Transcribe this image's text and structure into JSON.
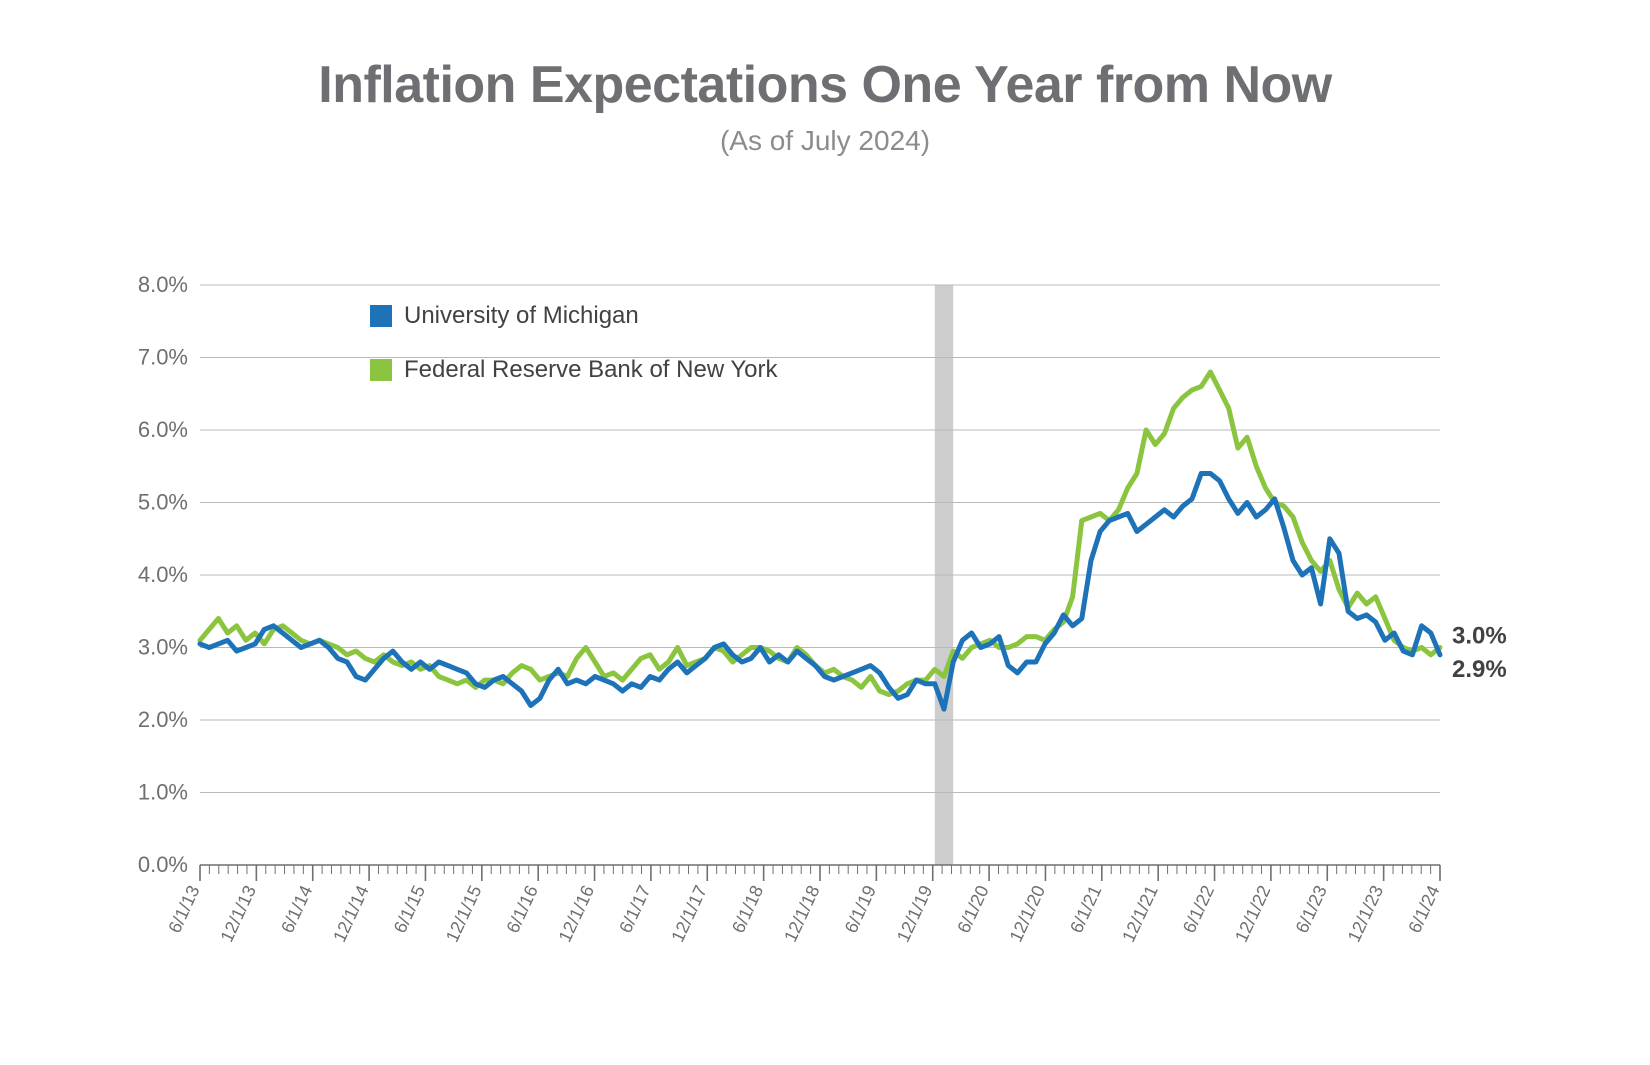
{
  "title": "Inflation Expectations One Year from Now",
  "subtitle": "(As of July 2024)",
  "chart": {
    "type": "line",
    "background_color": "#ffffff",
    "grid_color": "#b9b9b9",
    "axis_color": "#6e6f72",
    "tick_color": "#6e6f72",
    "ytick_label_fontsize": 22,
    "xtick_label_fontsize": 18,
    "ylim": [
      0,
      8
    ],
    "ytick_step": 1,
    "ytick_format_suffix": ".0%",
    "x_labels": [
      "6/1/13",
      "12/1/13",
      "6/1/14",
      "12/1/14",
      "6/1/15",
      "12/1/15",
      "6/1/16",
      "12/1/16",
      "6/1/17",
      "12/1/17",
      "6/1/18",
      "12/1/18",
      "6/1/19",
      "12/1/19",
      "6/1/20",
      "12/1/20",
      "6/1/21",
      "12/1/21",
      "6/1/22",
      "12/1/22",
      "6/1/23",
      "12/1/23",
      "6/1/24"
    ],
    "minor_ticks_per_major": 6,
    "recession_band": {
      "x_start_index": 80,
      "x_end_index": 82,
      "color": "#bcbcbc",
      "opacity": 0.75
    },
    "line_width": 5,
    "legend": {
      "x": 250,
      "y_first": 58,
      "row_gap": 54,
      "swatch_size": 22,
      "fontsize": 24,
      "text_color": "#404244"
    },
    "series": [
      {
        "name": "Federal Reserve Bank of New York",
        "color": "#8bc53f",
        "end_label": "3.0%",
        "end_label_color": "#404244",
        "values": [
          3.1,
          3.25,
          3.4,
          3.2,
          3.3,
          3.1,
          3.2,
          3.05,
          3.25,
          3.3,
          3.2,
          3.1,
          3.05,
          3.1,
          3.05,
          3.0,
          2.9,
          2.95,
          2.85,
          2.8,
          2.9,
          2.8,
          2.75,
          2.8,
          2.7,
          2.75,
          2.6,
          2.55,
          2.5,
          2.55,
          2.45,
          2.55,
          2.55,
          2.5,
          2.65,
          2.75,
          2.7,
          2.55,
          2.6,
          2.65,
          2.6,
          2.85,
          3.0,
          2.8,
          2.6,
          2.65,
          2.55,
          2.7,
          2.85,
          2.9,
          2.7,
          2.8,
          3.0,
          2.75,
          2.8,
          2.85,
          3.0,
          2.95,
          2.8,
          2.9,
          3.0,
          3.0,
          2.95,
          2.85,
          2.8,
          3.0,
          2.9,
          2.75,
          2.65,
          2.7,
          2.6,
          2.55,
          2.45,
          2.6,
          2.4,
          2.35,
          2.4,
          2.5,
          2.55,
          2.55,
          2.7,
          2.6,
          2.95,
          2.85,
          3.0,
          3.05,
          3.1,
          3.0,
          3.0,
          3.05,
          3.15,
          3.15,
          3.1,
          3.25,
          3.35,
          3.7,
          4.75,
          4.8,
          4.85,
          4.75,
          4.9,
          5.2,
          5.4,
          6.0,
          5.8,
          5.95,
          6.3,
          6.45,
          6.55,
          6.6,
          6.8,
          6.55,
          6.3,
          5.75,
          5.9,
          5.5,
          5.2,
          5.0,
          4.95,
          4.8,
          4.45,
          4.2,
          4.05,
          4.2,
          3.8,
          3.55,
          3.75,
          3.6,
          3.7,
          3.4,
          3.1,
          3.0,
          2.95,
          3.0,
          2.9,
          3.0
        ]
      },
      {
        "name": "University of Michigan",
        "color": "#1e73b8",
        "end_label": "2.9%",
        "end_label_color": "#404244",
        "values": [
          3.05,
          3.0,
          3.05,
          3.1,
          2.95,
          3.0,
          3.05,
          3.25,
          3.3,
          3.2,
          3.1,
          3.0,
          3.05,
          3.1,
          3.0,
          2.85,
          2.8,
          2.6,
          2.55,
          2.7,
          2.85,
          2.95,
          2.8,
          2.7,
          2.8,
          2.7,
          2.8,
          2.75,
          2.7,
          2.65,
          2.5,
          2.45,
          2.55,
          2.6,
          2.5,
          2.4,
          2.2,
          2.3,
          2.55,
          2.7,
          2.5,
          2.55,
          2.5,
          2.6,
          2.55,
          2.5,
          2.4,
          2.5,
          2.45,
          2.6,
          2.55,
          2.7,
          2.8,
          2.65,
          2.75,
          2.85,
          3.0,
          3.05,
          2.9,
          2.8,
          2.85,
          3.0,
          2.8,
          2.9,
          2.8,
          2.95,
          2.85,
          2.75,
          2.6,
          2.55,
          2.6,
          2.65,
          2.7,
          2.75,
          2.65,
          2.45,
          2.3,
          2.35,
          2.55,
          2.5,
          2.5,
          2.15,
          2.8,
          3.1,
          3.2,
          3.0,
          3.05,
          3.15,
          2.75,
          2.65,
          2.8,
          2.8,
          3.05,
          3.2,
          3.45,
          3.3,
          3.4,
          4.2,
          4.6,
          4.75,
          4.8,
          4.85,
          4.6,
          4.7,
          4.8,
          4.9,
          4.8,
          4.95,
          5.05,
          5.4,
          5.4,
          5.3,
          5.05,
          4.85,
          5.0,
          4.8,
          4.9,
          5.05,
          4.65,
          4.2,
          4.0,
          4.1,
          3.6,
          4.5,
          4.3,
          3.5,
          3.4,
          3.45,
          3.35,
          3.1,
          3.2,
          2.95,
          2.9,
          3.3,
          3.2,
          2.9
        ]
      }
    ]
  }
}
